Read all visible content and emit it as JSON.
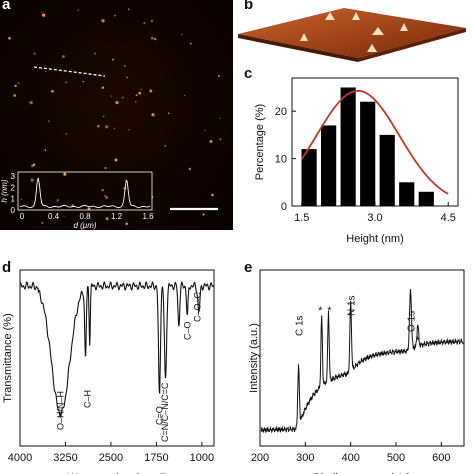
{
  "panels": {
    "a": "a",
    "b": "b",
    "c": "c",
    "d": "d",
    "e": "e"
  },
  "colors": {
    "afm_background": "#0f0400",
    "afm_particle": "#f0a040",
    "bars": "#000000",
    "fit_curve": "#c0392b",
    "surface": "#a44a1c"
  },
  "inset_a": {
    "ylabel": "h (nm)",
    "xlabel": "d (μm)",
    "yticks": [
      "3",
      "2",
      "1",
      "0"
    ],
    "xticks": [
      "0",
      "0.4",
      "0.8",
      "1.2",
      "1.6"
    ]
  },
  "chart_data": [
    {
      "panel": "c",
      "type": "bar",
      "xlabel": "Height (nm)",
      "ylabel": "Percentage (%)",
      "x": [
        1.5,
        1.8,
        2.1,
        2.4,
        2.7,
        3.0,
        3.3,
        3.6,
        3.9,
        4.2,
        4.5
      ],
      "values": [
        null,
        12,
        17,
        25,
        22,
        15,
        5,
        3,
        null,
        null,
        null
      ],
      "bars": [
        {
          "x": 1.65,
          "value": 12
        },
        {
          "x": 2.05,
          "value": 17
        },
        {
          "x": 2.45,
          "value": 25
        },
        {
          "x": 2.85,
          "value": 22
        },
        {
          "x": 3.25,
          "value": 15
        },
        {
          "x": 3.65,
          "value": 5
        },
        {
          "x": 4.05,
          "value": 3
        }
      ],
      "xlim": [
        1.3,
        4.7
      ],
      "ylim": [
        0,
        27
      ],
      "xticks": [
        "1.5",
        "3.0",
        "4.5"
      ],
      "yticks": [
        "0",
        "10",
        "20"
      ],
      "fit": "gaussian"
    },
    {
      "panel": "d",
      "type": "line",
      "xlabel": "Wavenumber (cm⁻¹)",
      "ylabel": "Transmittance (%)",
      "xlim": [
        4000,
        800
      ],
      "xticks": [
        "4000",
        "3250",
        "2500",
        "1750",
        "1000"
      ],
      "annotations": [
        "O–H/N–H",
        "C–H",
        "C=O",
        "C=N/C–N/C=C",
        "C–O",
        "C–O–C"
      ]
    },
    {
      "panel": "e",
      "type": "line",
      "xlabel": "Binding energy (eV)",
      "ylabel": "Intensity (a.u.)",
      "xlim": [
        200,
        650
      ],
      "xticks": [
        "200",
        "300",
        "400",
        "500",
        "600"
      ],
      "annotations": [
        "C 1s",
        "*",
        "*",
        "N 1s",
        "O 1s",
        "*"
      ]
    }
  ]
}
